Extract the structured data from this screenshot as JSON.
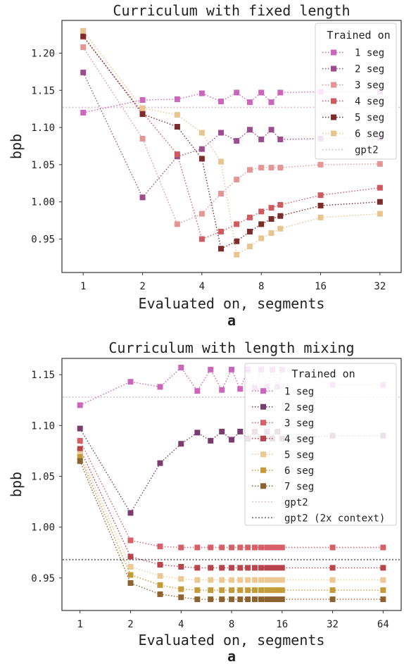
{
  "charts": [
    {
      "id": "a",
      "type": "line",
      "title": "Curriculum with fixed length",
      "xlabel": "Evaluated on, segments",
      "ylabel": "bpb",
      "sublabel": "a",
      "x_scale": "log2",
      "xlim": [
        0.78,
        41
      ],
      "ylim": [
        0.905,
        1.244
      ],
      "x_ticks": [
        1,
        2,
        4,
        8,
        16,
        32
      ],
      "x_tick_labels": [
        "1",
        "2",
        "4",
        "8",
        "16",
        "32"
      ],
      "y_ticks": [
        0.95,
        1.0,
        1.05,
        1.1,
        1.15,
        1.2
      ],
      "y_tick_labels": [
        "0.95",
        "1.00",
        "1.05",
        "1.10",
        "1.15",
        "1.20"
      ],
      "legend_title": "Trained on",
      "legend_position": "upper right",
      "grid": false,
      "series": [
        {
          "name": "1 seg",
          "color": "#cc66bb",
          "x": [
            1,
            2,
            3,
            4,
            5,
            6,
            7,
            8,
            9,
            10,
            16,
            32
          ],
          "y": [
            1.12,
            1.137,
            1.138,
            1.146,
            1.135,
            1.147,
            1.134,
            1.147,
            1.134,
            1.147,
            1.148,
            1.148
          ]
        },
        {
          "name": "2 seg",
          "color": "#9b4d8e",
          "x": [
            1,
            2,
            3,
            4,
            5,
            6,
            7,
            8,
            9,
            10,
            16,
            32
          ],
          "y": [
            1.174,
            1.006,
            1.061,
            1.071,
            1.093,
            1.082,
            1.097,
            1.084,
            1.097,
            1.084,
            1.085,
            1.086
          ]
        },
        {
          "name": "3 seg",
          "color": "#e49595",
          "x": [
            1,
            2,
            3,
            4,
            5,
            6,
            7,
            8,
            9,
            10,
            16,
            32
          ],
          "y": [
            1.208,
            1.085,
            0.97,
            0.984,
            1.011,
            1.03,
            1.043,
            1.046,
            1.046,
            1.046,
            1.05,
            1.051
          ]
        },
        {
          "name": "4 seg",
          "color": "#cf5a60",
          "x": [
            1,
            2,
            3,
            4,
            5,
            6,
            7,
            8,
            9,
            10,
            16,
            32
          ],
          "y": [
            1.222,
            1.12,
            1.064,
            0.95,
            0.96,
            0.97,
            0.979,
            0.987,
            0.992,
            0.996,
            1.009,
            1.019
          ]
        },
        {
          "name": "5 seg",
          "color": "#7a2d2a",
          "x": [
            1,
            2,
            3,
            4,
            5,
            6,
            7,
            8,
            9,
            10,
            16,
            32
          ],
          "y": [
            1.223,
            1.118,
            1.101,
            1.058,
            0.937,
            0.947,
            0.96,
            0.97,
            0.977,
            0.981,
            0.995,
            1.0
          ]
        },
        {
          "name": "6 seg",
          "color": "#e8c48e",
          "x": [
            1,
            2,
            3,
            4,
            5,
            6,
            7,
            8,
            9,
            10,
            16,
            32
          ],
          "y": [
            1.23,
            1.126,
            1.117,
            1.093,
            1.054,
            0.929,
            0.94,
            0.951,
            0.958,
            0.964,
            0.979,
            0.984
          ]
        }
      ],
      "reference_lines": [
        {
          "name": "gpt2",
          "y": 1.127,
          "color": "#d9c6cf",
          "style": "dotted"
        }
      ]
    },
    {
      "id": "b",
      "type": "line",
      "title": "Curriculum with length mixing",
      "xlabel": "Evaluated on, segments",
      "ylabel": "bpb",
      "sublabel": "a",
      "x_scale": "log2",
      "xlim": [
        0.78,
        82
      ],
      "ylim": [
        0.918,
        1.166
      ],
      "x_ticks": [
        1,
        2,
        4,
        8,
        16,
        32,
        64
      ],
      "x_tick_labels": [
        "1",
        "2",
        "4",
        "8",
        "16",
        "32",
        "64"
      ],
      "y_ticks": [
        0.95,
        1.0,
        1.05,
        1.1,
        1.15
      ],
      "y_tick_labels": [
        "0.95",
        "1.00",
        "1.05",
        "1.10",
        "1.15"
      ],
      "legend_title": "Trained on",
      "legend_position": "upper right",
      "grid": false,
      "series": [
        {
          "name": "1 seg",
          "color": "#cc66bb",
          "x": [
            1,
            2,
            3,
            4,
            5,
            6,
            7,
            8,
            9,
            10,
            11,
            12,
            13,
            14,
            15,
            16,
            32,
            64
          ],
          "y": [
            1.12,
            1.143,
            1.138,
            1.157,
            1.134,
            1.155,
            1.135,
            1.155,
            1.136,
            1.155,
            1.137,
            1.155,
            1.138,
            1.155,
            1.138,
            1.155,
            1.14,
            1.14
          ]
        },
        {
          "name": "2 seg",
          "color": "#7b3b6e",
          "x": [
            1,
            2,
            3,
            4,
            5,
            6,
            7,
            8,
            9,
            10,
            11,
            12,
            13,
            14,
            15,
            16,
            32,
            64
          ],
          "y": [
            1.097,
            1.014,
            1.063,
            1.082,
            1.093,
            1.085,
            1.094,
            1.086,
            1.094,
            1.087,
            1.094,
            1.087,
            1.094,
            1.087,
            1.094,
            1.087,
            1.09,
            1.09
          ]
        },
        {
          "name": "3 seg",
          "color": "#d65f6a",
          "x": [
            1,
            2,
            3,
            4,
            5,
            6,
            7,
            8,
            9,
            10,
            11,
            12,
            13,
            14,
            15,
            16,
            32,
            64
          ],
          "y": [
            1.085,
            0.987,
            0.981,
            0.98,
            0.98,
            0.98,
            0.98,
            0.98,
            0.98,
            0.98,
            0.98,
            0.98,
            0.98,
            0.98,
            0.98,
            0.98,
            0.98,
            0.98
          ]
        },
        {
          "name": "4 seg",
          "color": "#b8434d",
          "x": [
            1,
            2,
            3,
            4,
            5,
            6,
            7,
            8,
            9,
            10,
            11,
            12,
            13,
            14,
            15,
            16,
            32,
            64
          ],
          "y": [
            1.077,
            0.971,
            0.963,
            0.961,
            0.96,
            0.96,
            0.96,
            0.96,
            0.96,
            0.96,
            0.96,
            0.96,
            0.96,
            0.96,
            0.96,
            0.96,
            0.96,
            0.96
          ]
        },
        {
          "name": "5 seg",
          "color": "#ecc894",
          "x": [
            1,
            2,
            3,
            4,
            5,
            6,
            7,
            8,
            9,
            10,
            11,
            12,
            13,
            14,
            15,
            16,
            32,
            64
          ],
          "y": [
            1.072,
            0.961,
            0.952,
            0.949,
            0.948,
            0.948,
            0.948,
            0.948,
            0.948,
            0.948,
            0.948,
            0.948,
            0.948,
            0.948,
            0.948,
            0.948,
            0.948,
            0.948
          ]
        },
        {
          "name": "6 seg",
          "color": "#c49b3a",
          "x": [
            1,
            2,
            3,
            4,
            5,
            6,
            7,
            8,
            9,
            10,
            11,
            12,
            13,
            14,
            15,
            16,
            32,
            64
          ],
          "y": [
            1.069,
            0.953,
            0.943,
            0.939,
            0.938,
            0.938,
            0.938,
            0.938,
            0.938,
            0.938,
            0.938,
            0.938,
            0.938,
            0.938,
            0.938,
            0.938,
            0.938,
            0.938
          ]
        },
        {
          "name": "7 seg",
          "color": "#8c6330",
          "x": [
            1,
            2,
            3,
            4,
            5,
            6,
            7,
            8,
            9,
            10,
            11,
            12,
            13,
            14,
            15,
            16,
            32,
            64
          ],
          "y": [
            1.065,
            0.945,
            0.934,
            0.931,
            0.929,
            0.929,
            0.929,
            0.929,
            0.929,
            0.929,
            0.929,
            0.929,
            0.929,
            0.929,
            0.929,
            0.929,
            0.929,
            0.929
          ]
        }
      ],
      "reference_lines": [
        {
          "name": "gpt2",
          "y": 1.128,
          "color": "#d9c6cf",
          "style": "dotted"
        },
        {
          "name": "gpt2 (2x context)",
          "y": 0.968,
          "color": "#6e6e6e",
          "style": "dotted"
        }
      ]
    }
  ]
}
